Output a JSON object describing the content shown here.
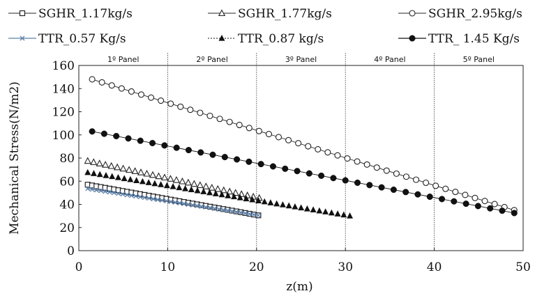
{
  "chart_data": {
    "type": "scatter",
    "title": "",
    "xlabel": "z(m)",
    "ylabel": "Mechanical Stress(N/m2)",
    "xlim": [
      0,
      50
    ],
    "ylim": [
      0,
      160
    ],
    "xticks": [
      0,
      10,
      20,
      30,
      40,
      50
    ],
    "yticks": [
      0,
      20,
      40,
      60,
      80,
      100,
      120,
      140,
      160
    ],
    "grid": false,
    "legend_position": "top",
    "panel_boundaries": [
      10,
      20,
      30,
      40
    ],
    "panels": [
      "1º Panel",
      "2º Panel",
      "3º Panel",
      "4º Panel",
      "5º Panel"
    ],
    "series": [
      {
        "name": "SGHR_1.17kg/s",
        "marker": "open-square",
        "color": "#222222",
        "x_start": 1.0,
        "x_end": 20.2,
        "y_start": 57,
        "y_end": 30.5,
        "n_points": 40,
        "trend_line": true
      },
      {
        "name": "SGHR_1.77kg/s",
        "marker": "open-triangle",
        "color": "#222222",
        "x_start": 1.0,
        "x_end": 20.3,
        "y_start": 77.5,
        "y_end": 45.5,
        "n_points": 30,
        "trend_line": false
      },
      {
        "name": "SGHR_2.95kg/s",
        "marker": "open-circle",
        "color": "#222222",
        "x_start": 1.5,
        "x_end": 49.0,
        "y_start": 148,
        "y_end": 35,
        "n_points": 44,
        "trend_line": true
      },
      {
        "name": "TTR_0.57 Kg/s",
        "marker": "cross",
        "color": "#5b7fa8",
        "x_start": 1.0,
        "x_end": 20.2,
        "y_start": 53.5,
        "y_end": 30.5,
        "n_points": 40,
        "trend_line": true
      },
      {
        "name": "TTR_0.87 kg/s",
        "marker": "filled-triangle",
        "color": "#111111",
        "x_start": 1.0,
        "x_end": 30.5,
        "y_start": 67.5,
        "y_end": 30,
        "n_points": 44,
        "trend_line": false
      },
      {
        "name": "TTR_ 1.45 Kg/s",
        "marker": "filled-circle",
        "color": "#111111",
        "x_start": 1.5,
        "x_end": 49.0,
        "y_start": 103,
        "y_end": 32.5,
        "n_points": 36,
        "trend_line": true
      }
    ]
  }
}
